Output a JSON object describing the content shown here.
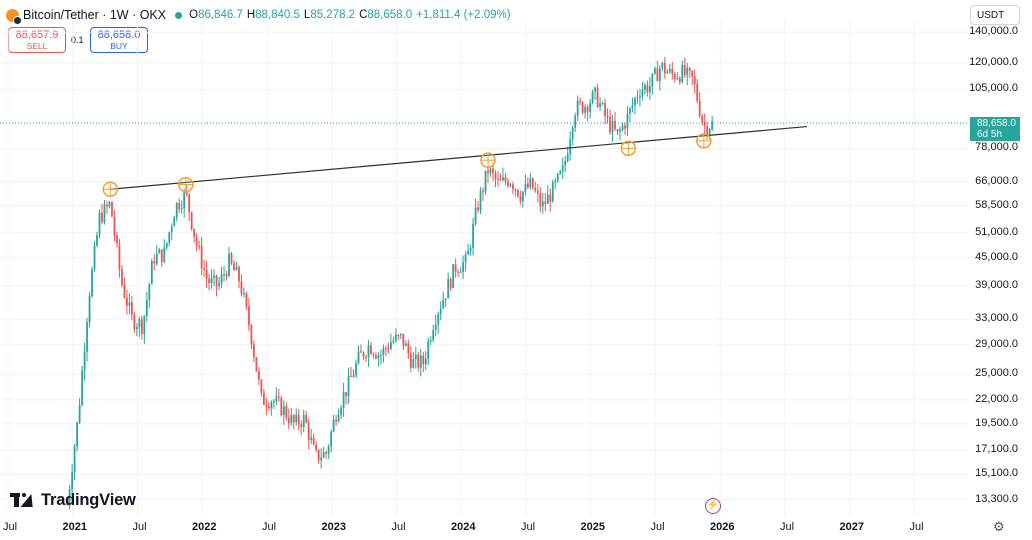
{
  "header": {
    "symbol": "Bitcoin/Tether · 1W · OKX",
    "o_label": "O",
    "o": "86,846.7",
    "h_label": "H",
    "h": "88,840.5",
    "l_label": "L",
    "l": "85,278.2",
    "c_label": "C",
    "c": "88,658.0",
    "change": "+1,811.4 (+2.09%)"
  },
  "trade": {
    "sell_price": "88,657.9",
    "sell_label": "SELL",
    "buy_price": "88,658.0",
    "buy_label": "BUY",
    "spread": "0.1"
  },
  "currency": "USDT",
  "last_price": {
    "value": "88,658.0",
    "countdown": "6d 5h"
  },
  "brand": "TradingView",
  "colors": {
    "up": "#26a69a",
    "down": "#ef5350",
    "trendline": "#2a2e39",
    "marker": "#f0a030"
  },
  "chart_data": {
    "type": "candlestick",
    "scale": "log",
    "interval": "1W",
    "ylim": [
      12500,
      155000
    ],
    "y_ticks": [
      "140,000.0",
      "120,000.0",
      "105,000.0",
      "78,000.0",
      "66,000.0",
      "58,500.0",
      "51,000.0",
      "45,000.0",
      "39,000.0",
      "33,000.0",
      "29,000.0",
      "25,000.0",
      "22,000.0",
      "19,500.0",
      "17,100.0",
      "15,100.0",
      "13,300.0"
    ],
    "x_ticks": [
      "Jul",
      "2021",
      "Jul",
      "2022",
      "Jul",
      "2023",
      "Jul",
      "2024",
      "Jul",
      "2025",
      "Jul",
      "2026",
      "Jul",
      "2027",
      "Jul"
    ],
    "trendline": {
      "from": {
        "date": "2021-04",
        "price": 63500
      },
      "to": {
        "date": "2025-12",
        "price": 83500
      }
    },
    "touch_points": [
      {
        "date": "2021-04",
        "price": 63500
      },
      {
        "date": "2021-11",
        "price": 65000
      },
      {
        "date": "2024-03",
        "price": 73500
      },
      {
        "date": "2025-04",
        "price": 78000
      },
      {
        "date": "2025-11",
        "price": 81000
      }
    ],
    "path_points": [
      {
        "date": "2020-12",
        "price": 13000
      },
      {
        "date": "2021-01",
        "price": 20000
      },
      {
        "date": "2021-02",
        "price": 37000
      },
      {
        "date": "2021-03",
        "price": 55000
      },
      {
        "date": "2021-04",
        "price": 59000
      },
      {
        "date": "2021-05",
        "price": 40000
      },
      {
        "date": "2021-06",
        "price": 33000
      },
      {
        "date": "2021-07",
        "price": 32000
      },
      {
        "date": "2021-08",
        "price": 45000
      },
      {
        "date": "2021-09",
        "price": 46000
      },
      {
        "date": "2021-10",
        "price": 58000
      },
      {
        "date": "2021-11",
        "price": 62000
      },
      {
        "date": "2021-12",
        "price": 48000
      },
      {
        "date": "2022-01",
        "price": 40000
      },
      {
        "date": "2022-02",
        "price": 39000
      },
      {
        "date": "2022-03",
        "price": 44000
      },
      {
        "date": "2022-04",
        "price": 40000
      },
      {
        "date": "2022-05",
        "price": 31000
      },
      {
        "date": "2022-06",
        "price": 22000
      },
      {
        "date": "2022-07",
        "price": 22000
      },
      {
        "date": "2022-08",
        "price": 21000
      },
      {
        "date": "2022-09",
        "price": 19500
      },
      {
        "date": "2022-10",
        "price": 20000
      },
      {
        "date": "2022-11",
        "price": 16500
      },
      {
        "date": "2022-12",
        "price": 16800
      },
      {
        "date": "2023-01",
        "price": 21000
      },
      {
        "date": "2023-02",
        "price": 23500
      },
      {
        "date": "2023-03",
        "price": 27000
      },
      {
        "date": "2023-04",
        "price": 29000
      },
      {
        "date": "2023-05",
        "price": 27500
      },
      {
        "date": "2023-06",
        "price": 29500
      },
      {
        "date": "2023-07",
        "price": 30000
      },
      {
        "date": "2023-08",
        "price": 26500
      },
      {
        "date": "2023-09",
        "price": 26500
      },
      {
        "date": "2023-10",
        "price": 33000
      },
      {
        "date": "2023-11",
        "price": 37500
      },
      {
        "date": "2023-12",
        "price": 43000
      },
      {
        "date": "2024-01",
        "price": 44000
      },
      {
        "date": "2024-02",
        "price": 58000
      },
      {
        "date": "2024-03",
        "price": 70000
      },
      {
        "date": "2024-04",
        "price": 65000
      },
      {
        "date": "2024-05",
        "price": 67000
      },
      {
        "date": "2024-06",
        "price": 62000
      },
      {
        "date": "2024-07",
        "price": 65000
      },
      {
        "date": "2024-08",
        "price": 58000
      },
      {
        "date": "2024-09",
        "price": 63000
      },
      {
        "date": "2024-10",
        "price": 70000
      },
      {
        "date": "2024-11",
        "price": 95000
      },
      {
        "date": "2024-12",
        "price": 97000
      },
      {
        "date": "2025-01",
        "price": 102000
      },
      {
        "date": "2025-02",
        "price": 90000
      },
      {
        "date": "2025-03",
        "price": 83000
      },
      {
        "date": "2025-04",
        "price": 92000
      },
      {
        "date": "2025-05",
        "price": 105000
      },
      {
        "date": "2025-06",
        "price": 107000
      },
      {
        "date": "2025-07",
        "price": 118000
      },
      {
        "date": "2025-08",
        "price": 113000
      },
      {
        "date": "2025-09",
        "price": 114000
      },
      {
        "date": "2025-10",
        "price": 110000
      },
      {
        "date": "2025-11",
        "price": 87000
      },
      {
        "date": "2025-12",
        "price": 88658
      }
    ]
  }
}
